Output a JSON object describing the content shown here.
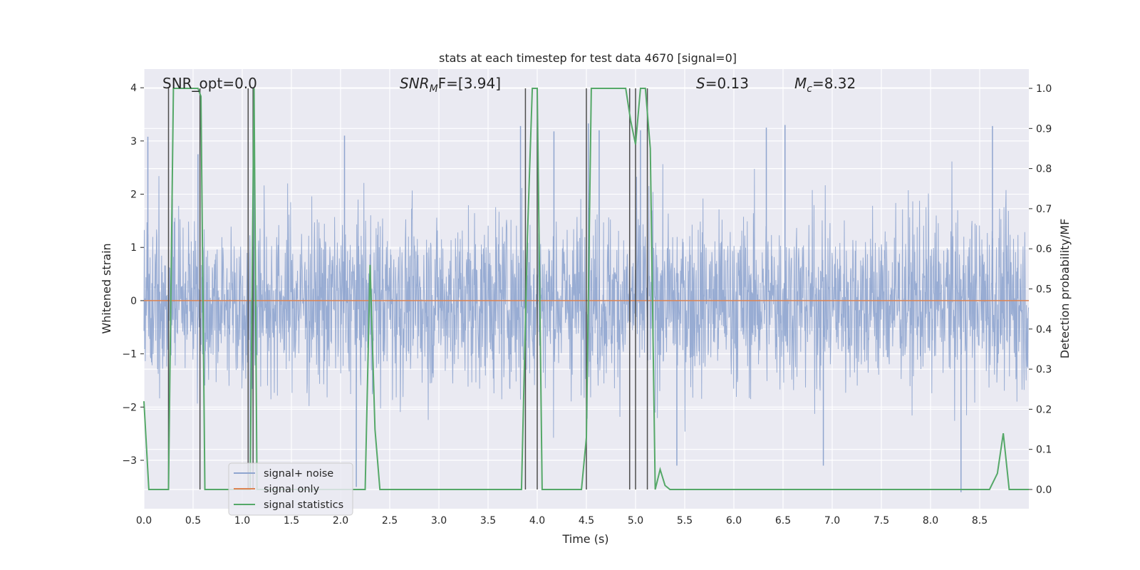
{
  "chart_data": {
    "type": "line",
    "title": "stats at each timestep for test data 4670 [signal=0]",
    "xlabel": "Time (s)",
    "ylabel_left": "Whitened strain",
    "ylabel_right": "Detection probability/MF",
    "xlim": [
      0,
      9.0
    ],
    "ylim_left": [
      -3.91,
      4.35
    ],
    "ylim_right": [
      -0.048,
      1.048
    ],
    "x_ticks": [
      "0.0",
      "0.5",
      "1.0",
      "1.5",
      "2.0",
      "2.5",
      "3.0",
      "3.5",
      "4.0",
      "4.5",
      "5.0",
      "5.5",
      "6.0",
      "6.5",
      "7.0",
      "7.5",
      "8.0",
      "8.5"
    ],
    "y_ticks_left": [
      "−3",
      "−2",
      "−1",
      "0",
      "1",
      "2",
      "3",
      "4"
    ],
    "y_ticks_right": [
      "0.0",
      "0.1",
      "0.2",
      "0.3",
      "0.4",
      "0.5",
      "0.6",
      "0.7",
      "0.8",
      "0.9",
      "1.0"
    ],
    "grid": true,
    "legend_position": "lower-left",
    "annotations": {
      "snr_opt": "SNR_opt=0.0",
      "snr_mf_main": "SNR",
      "snr_mf_sub": "M",
      "snr_mf_tail": "F=[3.94]",
      "s_main": "S",
      "s_tail": "=0.13",
      "mc_main": "M",
      "mc_sub": "c",
      "mc_tail": "=8.32"
    },
    "series": [
      {
        "name": "signal+ noise",
        "color": "#8fa5cf",
        "axis": "left",
        "description_level": "noise roughly within [-2.5, 2.5] with spikes to about ±3.5",
        "spikes": [
          {
            "x": 0.04,
            "y": 3.08
          },
          {
            "x": 0.55,
            "y": 2.75
          },
          {
            "x": 1.12,
            "y": 3.7
          },
          {
            "x": 2.04,
            "y": 3.1
          },
          {
            "x": 2.16,
            "y": -3.5
          },
          {
            "x": 3.83,
            "y": 3.28
          },
          {
            "x": 4.17,
            "y": 3.18
          },
          {
            "x": 4.52,
            "y": 3.33
          },
          {
            "x": 4.63,
            "y": 3.2
          },
          {
            "x": 5.05,
            "y": 3.2
          },
          {
            "x": 6.33,
            "y": 3.25
          },
          {
            "x": 6.52,
            "y": 3.3
          },
          {
            "x": 5.42,
            "y": -3.1
          },
          {
            "x": 6.91,
            "y": -3.1
          },
          {
            "x": 8.31,
            "y": -3.6
          },
          {
            "x": 8.63,
            "y": 3.28
          },
          {
            "x": 1.08,
            "y": -3.3
          }
        ]
      },
      {
        "name": "signal only",
        "color": "#dd8452",
        "axis": "left",
        "x": [
          0,
          9.0
        ],
        "y": [
          0,
          0
        ]
      },
      {
        "name": "signal statistics",
        "color": "#55a868",
        "axis": "right",
        "x": [
          0.0,
          0.05,
          0.1,
          0.15,
          0.2,
          0.25,
          0.3,
          0.35,
          0.4,
          0.45,
          0.5,
          0.55,
          0.58,
          0.62,
          0.66,
          0.7,
          0.75,
          0.8,
          0.85,
          0.9,
          0.95,
          1.0,
          1.05,
          1.08,
          1.12,
          1.15,
          1.18,
          1.22,
          1.3,
          1.4,
          1.5,
          1.6,
          1.7,
          1.8,
          1.9,
          2.0,
          2.1,
          2.15,
          2.2,
          2.25,
          2.3,
          2.35,
          2.4,
          2.45,
          2.5,
          3.0,
          3.5,
          3.84,
          3.9,
          3.95,
          4.0,
          4.05,
          4.1,
          4.2,
          4.3,
          4.4,
          4.45,
          4.5,
          4.55,
          4.6,
          4.7,
          4.8,
          4.9,
          4.95,
          5.0,
          5.05,
          5.1,
          5.15,
          5.2,
          5.25,
          5.3,
          5.35,
          5.4,
          5.5,
          6.0,
          7.0,
          8.0,
          8.6,
          8.68,
          8.74,
          8.8,
          8.85,
          8.9,
          9.0
        ],
        "y": [
          0.22,
          0.0,
          0.0,
          0.0,
          0.0,
          0.0,
          1.0,
          1.0,
          1.0,
          1.0,
          1.0,
          1.0,
          0.98,
          0.0,
          0.0,
          0.0,
          0.0,
          0.0,
          0.0,
          0.0,
          0.0,
          0.0,
          0.0,
          0.0,
          1.0,
          0.0,
          0.0,
          0.0,
          0.0,
          0.0,
          0.0,
          0.0,
          0.0,
          0.0,
          0.0,
          0.0,
          0.0,
          0.0,
          0.0,
          0.0,
          0.56,
          0.15,
          0.0,
          0.0,
          0.0,
          0.0,
          0.0,
          0.0,
          0.63,
          1.0,
          1.0,
          0.0,
          0.0,
          0.0,
          0.0,
          0.0,
          0.0,
          0.13,
          1.0,
          1.0,
          1.0,
          1.0,
          1.0,
          0.92,
          0.86,
          1.0,
          1.0,
          0.85,
          0.0,
          0.05,
          0.01,
          0.0,
          0.0,
          0.0,
          0.0,
          0.0,
          0.0,
          0.0,
          0.04,
          0.14,
          0.0,
          0.0,
          0.0,
          0.0
        ]
      }
    ],
    "vertical_markers": {
      "color": "#4d4d4d",
      "x": [
        0.25,
        0.57,
        1.06,
        1.11,
        3.88,
        4.0,
        4.5,
        4.94,
        5.0,
        5.12
      ],
      "y_top": 1.0,
      "y_bottom": 0.0
    }
  }
}
